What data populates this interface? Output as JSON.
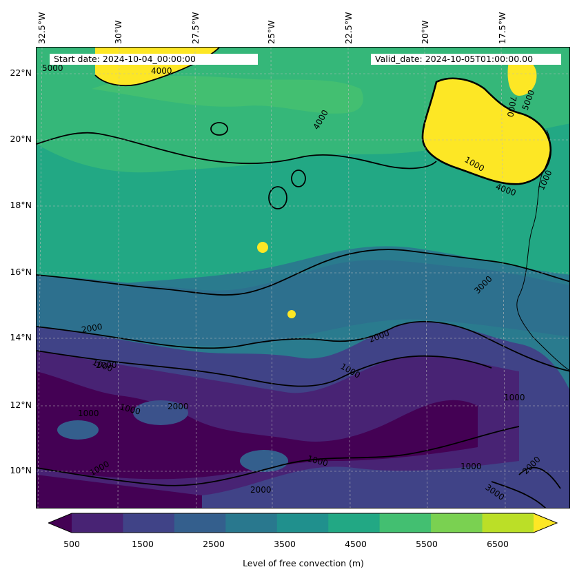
{
  "header": {
    "start_date": "Start date: 2024-10-04_00:00:00",
    "valid_date": "Valid_date: 2024-10-05T01:00:00.00"
  },
  "axes": {
    "longitude_labels": [
      "32.5°W",
      "30°W",
      "27.5°W",
      "25°W",
      "22.5°W",
      "20°W",
      "17.5°W"
    ],
    "latitude_labels": [
      "22°N",
      "20°N",
      "18°N",
      "16°N",
      "14°N",
      "12°N",
      "10°N"
    ]
  },
  "map": {
    "contour_labels": [
      "5000",
      "4000",
      "4000",
      "4000",
      "3000",
      "3000",
      "2000",
      "2000",
      "2000",
      "2000",
      "2000",
      "2000",
      "1000",
      "1000",
      "1000",
      "1000",
      "1000",
      "1000",
      "1000",
      "1000",
      "7000",
      "5000",
      "1000",
      "1000"
    ]
  },
  "colorbar": {
    "title": "Level of free convection (m)",
    "tick_labels": [
      "500",
      "1500",
      "2500",
      "3500",
      "4500",
      "5500",
      "6500"
    ],
    "colors": [
      "#440154",
      "#482374",
      "#404387",
      "#345f8d",
      "#29788e",
      "#20908d",
      "#22a884",
      "#43bf71",
      "#7ad151",
      "#bbdf27",
      "#fde725"
    ]
  }
}
